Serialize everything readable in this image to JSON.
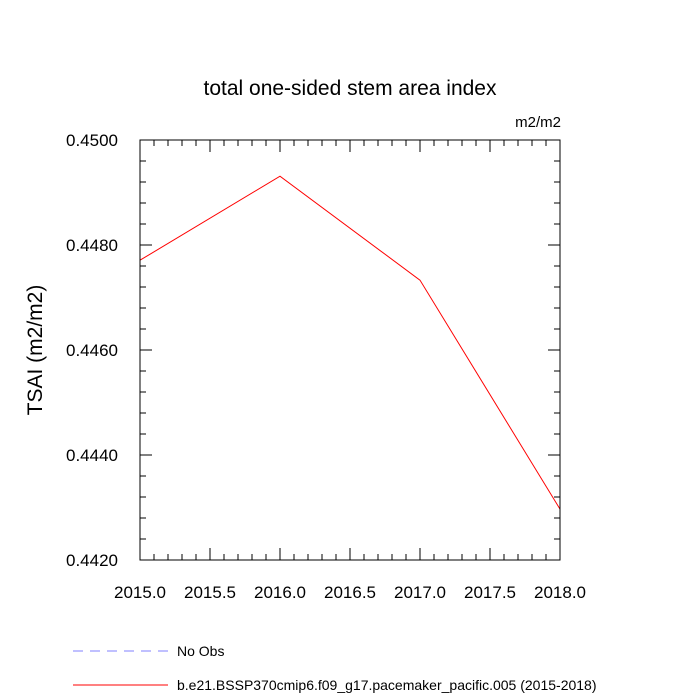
{
  "chart_data": {
    "type": "line",
    "title": "total one-sided stem area index",
    "units_label": "m2/m2",
    "ylabel": "TSAI  (m2/m2)",
    "xlabel": "",
    "xlim": [
      2015.0,
      2018.0
    ],
    "ylim": [
      0.442,
      0.45
    ],
    "x_ticks": [
      "2015.0",
      "2015.5",
      "2016.0",
      "2016.5",
      "2017.0",
      "2017.5",
      "2018.0"
    ],
    "y_ticks": [
      "0.4420",
      "0.4440",
      "0.4460",
      "0.4480",
      "0.4500"
    ],
    "grid": false,
    "legend_position": "bottom",
    "series": [
      {
        "name": "b.e21.BSSP370cmip6.f09_g17.pacemaker_pacific.005 (2015-2018)",
        "color": "#ff0000",
        "style": "solid",
        "x": [
          2015,
          2016,
          2017,
          2018
        ],
        "y": [
          0.44771,
          0.44931,
          0.44733,
          0.44297
        ]
      }
    ],
    "legend": [
      {
        "label": "No Obs",
        "color": "#8080ff",
        "style": "dashed"
      },
      {
        "label": "b.e21.BSSP370cmip6.f09_g17.pacemaker_pacific.005 (2015-2018)",
        "color": "#ff0000",
        "style": "solid"
      }
    ]
  }
}
